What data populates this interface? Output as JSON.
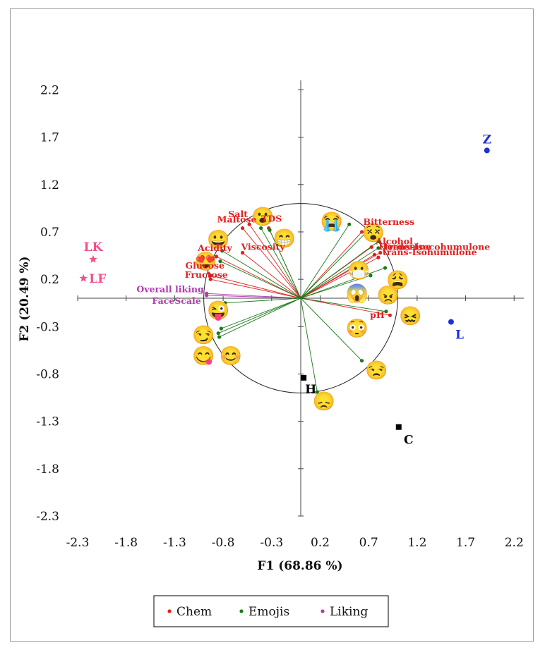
{
  "chart_data": {
    "type": "scatter",
    "xlabel": "F1 (68.86 %)",
    "ylabel": "F2 (20.49 %)",
    "xlim": [
      -2.3,
      2.3
    ],
    "ylim": [
      -2.3,
      2.3
    ],
    "xticks": [
      "-2.3",
      "-1.8",
      "-1.3",
      "-0.8",
      "-0.3",
      "0.2",
      "0.7",
      "1.2",
      "1.7",
      "2.2"
    ],
    "yticks": [
      "2.2",
      "1.7",
      "1.2",
      "0.7",
      "0.2",
      "-0.3",
      "-0.8",
      "-1.3",
      "-1.8",
      "-2.3"
    ],
    "unit_circle": true,
    "legend": {
      "placement": "bottom",
      "entries": [
        {
          "name": "Chem",
          "color": "#e02020"
        },
        {
          "name": "Emojis",
          "color": "#1a7a1a"
        },
        {
          "name": "Liking",
          "color": "#b03ab0"
        }
      ]
    },
    "variables": [
      {
        "group": "Chem",
        "label": "Salt",
        "x": -0.53,
        "y": 0.78
      },
      {
        "group": "Chem",
        "label": "Maltose",
        "x": -0.6,
        "y": 0.74
      },
      {
        "group": "Chem",
        "label": "TDS",
        "x": -0.33,
        "y": 0.74
      },
      {
        "group": "Chem",
        "label": "Viscosity",
        "x": -0.6,
        "y": 0.48
      },
      {
        "group": "Chem",
        "label": "Acidity",
        "x": -0.87,
        "y": 0.44
      },
      {
        "group": "Chem",
        "label": "Glucose",
        "x": -0.93,
        "y": 0.24
      },
      {
        "group": "Chem",
        "label": "Fructose",
        "x": -0.93,
        "y": 0.2
      },
      {
        "group": "Chem",
        "label": "Bitterness",
        "x": 0.63,
        "y": 0.7
      },
      {
        "group": "Chem",
        "label": "Alcohol",
        "x": 0.73,
        "y": 0.54
      },
      {
        "group": "Chem",
        "label": "Hordenine",
        "x": 0.76,
        "y": 0.46
      },
      {
        "group": "Chem",
        "label": "trans-Isocohumulone",
        "x": 0.82,
        "y": 0.48
      },
      {
        "group": "Chem",
        "label": "trans-Isohumulone",
        "x": 0.8,
        "y": 0.43
      },
      {
        "group": "Chem",
        "label": "pH",
        "x": 0.92,
        "y": -0.18
      },
      {
        "group": "Liking",
        "label": "Overall liking",
        "x": -0.97,
        "y": 0.05
      },
      {
        "group": "Liking",
        "label": "FaceScale",
        "x": -0.97,
        "y": 0.03
      },
      {
        "group": "Emojis",
        "label": "",
        "x": -0.41,
        "y": 0.74
      },
      {
        "group": "Emojis",
        "label": "",
        "x": -0.32,
        "y": 0.72
      },
      {
        "group": "Emojis",
        "label": "",
        "x": -0.81,
        "y": 0.5
      },
      {
        "group": "Emojis",
        "label": "",
        "x": -0.83,
        "y": 0.39
      },
      {
        "group": "Emojis",
        "label": "",
        "x": -0.78,
        "y": -0.05
      },
      {
        "group": "Emojis",
        "label": "",
        "x": -0.82,
        "y": -0.32
      },
      {
        "group": "Emojis",
        "label": "",
        "x": -0.85,
        "y": -0.37
      },
      {
        "group": "Emojis",
        "label": "",
        "x": -0.84,
        "y": -0.41
      },
      {
        "group": "Emojis",
        "label": "",
        "x": 0.5,
        "y": 0.78
      },
      {
        "group": "Emojis",
        "label": "",
        "x": 0.68,
        "y": 0.7
      },
      {
        "group": "Emojis",
        "label": "",
        "x": 0.8,
        "y": 0.6
      },
      {
        "group": "Emojis",
        "label": "",
        "x": 0.8,
        "y": 0.53
      },
      {
        "group": "Emojis",
        "label": "",
        "x": 0.72,
        "y": 0.24
      },
      {
        "group": "Emojis",
        "label": "",
        "x": 0.87,
        "y": 0.32
      },
      {
        "group": "Emojis",
        "label": "",
        "x": 0.88,
        "y": -0.14
      },
      {
        "group": "Emojis",
        "label": "",
        "x": 0.63,
        "y": -0.66
      },
      {
        "group": "Emojis",
        "label": "",
        "x": 0.17,
        "y": -0.99
      }
    ],
    "emojis": [
      {
        "icon": "hushed-face-icon",
        "glyph": "😮",
        "x": -0.39,
        "y": 0.87
      },
      {
        "icon": "grinning-face-icon",
        "glyph": "😀",
        "x": -0.85,
        "y": 0.63
      },
      {
        "icon": "beaming-face-icon",
        "glyph": "😁",
        "x": -0.17,
        "y": 0.64
      },
      {
        "icon": "heart-eyes-icon",
        "glyph": "😍",
        "x": -0.98,
        "y": 0.4
      },
      {
        "icon": "winking-tongue-icon",
        "glyph": "😜",
        "x": -0.85,
        "y": -0.12
      },
      {
        "icon": "smirking-face-icon",
        "glyph": "😏",
        "x": -1.0,
        "y": -0.38
      },
      {
        "icon": "yum-face-icon",
        "glyph": "😋",
        "x": -1.0,
        "y": -0.6
      },
      {
        "icon": "smiling-face-icon",
        "glyph": "😊",
        "x": -0.72,
        "y": -0.6
      },
      {
        "icon": "crying-face-icon",
        "glyph": "😭",
        "x": 0.32,
        "y": 0.82
      },
      {
        "icon": "dizzy-face-icon",
        "glyph": "😵",
        "x": 0.75,
        "y": 0.7
      },
      {
        "icon": "mask-face-icon",
        "glyph": "😷",
        "x": 0.6,
        "y": 0.3
      },
      {
        "icon": "weary-face-icon",
        "glyph": "😩",
        "x": 1.0,
        "y": 0.2
      },
      {
        "icon": "scream-face-icon",
        "glyph": "😱",
        "x": 0.58,
        "y": 0.06
      },
      {
        "icon": "angry-face-icon",
        "glyph": "😠",
        "x": 0.9,
        "y": 0.04
      },
      {
        "icon": "confounded-face-icon",
        "glyph": "😖",
        "x": 1.13,
        "y": -0.18
      },
      {
        "icon": "flushed-face-icon",
        "glyph": "😳",
        "x": 0.58,
        "y": -0.31
      },
      {
        "icon": "unamused-face-icon",
        "glyph": "😒",
        "x": 0.78,
        "y": -0.75
      },
      {
        "icon": "disappointed-face-icon",
        "glyph": "😞",
        "x": 0.24,
        "y": -1.08
      }
    ],
    "observations": [
      {
        "label": "Z",
        "x": 1.92,
        "y": 1.56,
        "marker": "circle",
        "color": "#1f2fd6"
      },
      {
        "label": "L",
        "x": 1.55,
        "y": -0.25,
        "marker": "circle",
        "color": "#1f2fd6"
      },
      {
        "label": "LK",
        "x": -2.14,
        "y": 0.41,
        "marker": "star",
        "color": "#f0508a"
      },
      {
        "label": "LF",
        "x": -2.24,
        "y": 0.21,
        "marker": "star",
        "color": "#f0508a"
      },
      {
        "label": "H",
        "x": 0.03,
        "y": -0.84,
        "marker": "square",
        "color": "#000000"
      },
      {
        "label": "C",
        "x": 1.01,
        "y": -1.36,
        "marker": "square",
        "color": "#000000"
      }
    ]
  }
}
